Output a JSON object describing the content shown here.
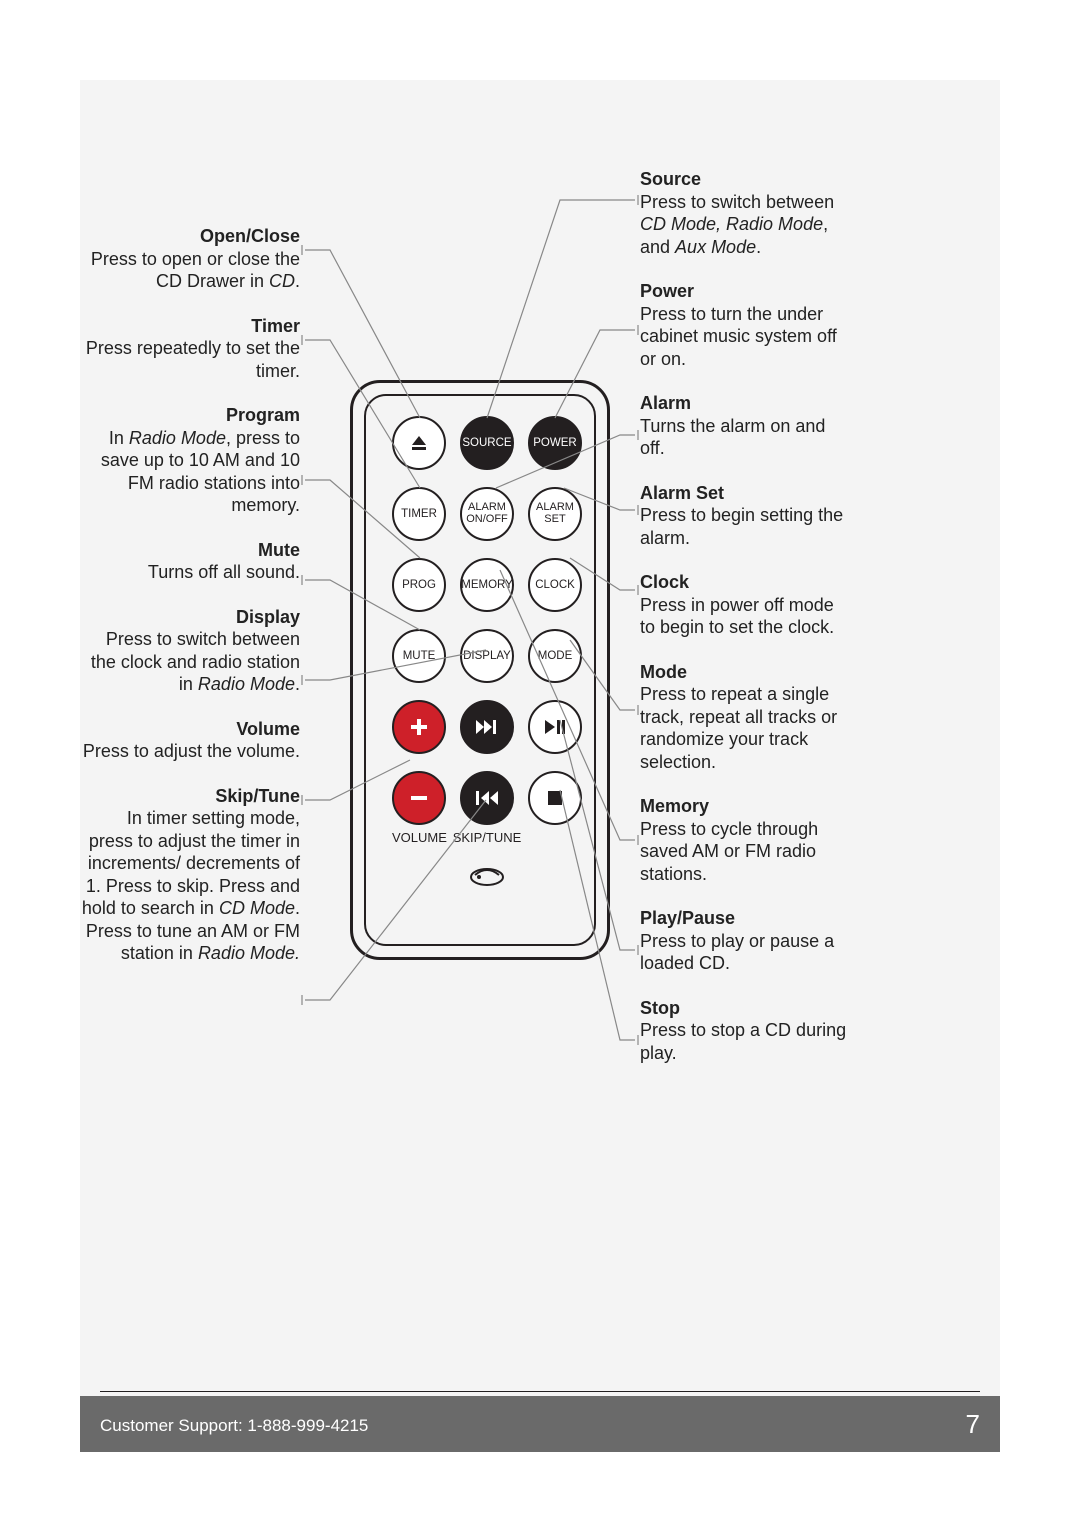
{
  "page": {
    "bg_color": "#f4f4f4",
    "text_color": "#222222",
    "line_color": "#888888",
    "footer_bg": "#6a6a6a",
    "footer_text_color": "#ffffff",
    "support_line": "Customer Support: 1-888-999-4215",
    "page_number": "7"
  },
  "left": [
    {
      "title": "Open/Close",
      "desc": "Press to open or close the CD Drawer in <i>CD</i>."
    },
    {
      "title": "Timer",
      "desc": "Press repeatedly to set the timer."
    },
    {
      "title": "Program",
      "desc": "In <i>Radio Mode</i>, press to save up to 10 AM and 10 FM radio stations into memory."
    },
    {
      "title": "Mute",
      "desc": "Turns off all sound."
    },
    {
      "title": "Display",
      "desc": "Press to switch between the clock and radio station in <i>Radio Mode</i>."
    },
    {
      "title": "Volume",
      "desc": "Press to adjust the volume."
    },
    {
      "title": "Skip/Tune",
      "desc": "In timer setting mode, press to adjust the timer in increments/ decrements of 1. Press to skip. Press and hold to search in <i>CD Mode</i>. Press to tune an AM or FM station in <i>Radio Mode.</i>"
    }
  ],
  "right": [
    {
      "title": "Source",
      "desc": "Press to switch between  <i>CD Mode, Radio Mode</i>, and <i>Aux Mode</i>."
    },
    {
      "title": "Power",
      "desc": "Press to turn the under cabinet music system off or on."
    },
    {
      "title": "Alarm",
      "desc": "Turns the alarm on and off."
    },
    {
      "title": "Alarm Set",
      "desc": "Press to begin setting the alarm."
    },
    {
      "title": "Clock",
      "desc": "Press in power off mode to begin to set the clock."
    },
    {
      "title": "Mode",
      "desc": "Press to repeat a single track, repeat all tracks or randomize your track selection."
    },
    {
      "title": "Memory",
      "desc": "Press to cycle through saved AM or FM radio stations."
    },
    {
      "title": "Play/Pause",
      "desc": "Press to play or pause a loaded CD."
    },
    {
      "title": "Stop",
      "desc": "Press to stop a CD during play."
    }
  ],
  "remote": {
    "outline_color": "#231f20",
    "btn_bg": "#ffffff",
    "btn_black": "#231f20",
    "btn_red": "#ce2029",
    "buttons": {
      "eject": {
        "label": "",
        "variant": "white",
        "icon": "eject"
      },
      "source": {
        "label": "SOURCE",
        "variant": "black"
      },
      "power": {
        "label": "POWER",
        "variant": "black"
      },
      "timer": {
        "label": "TIMER",
        "variant": "white"
      },
      "alarm": {
        "label": "ALARM\nON/OFF",
        "variant": "white"
      },
      "alarmset": {
        "label": "ALARM\nSET",
        "variant": "white"
      },
      "prog": {
        "label": "PROG",
        "variant": "white"
      },
      "memory": {
        "label": "MEMORY",
        "variant": "white"
      },
      "clock": {
        "label": "CLOCK",
        "variant": "white"
      },
      "mute": {
        "label": "MUTE",
        "variant": "white"
      },
      "display": {
        "label": "DISPLAY",
        "variant": "white"
      },
      "mode": {
        "label": "MODE",
        "variant": "white"
      },
      "vol_up": {
        "label": "",
        "variant": "red",
        "icon": "plus"
      },
      "skip_fwd": {
        "label": "",
        "variant": "black",
        "icon": "ffwd"
      },
      "play": {
        "label": "",
        "variant": "white",
        "icon": "playpause"
      },
      "vol_dn": {
        "label": "",
        "variant": "red",
        "icon": "minus"
      },
      "skip_bck": {
        "label": "",
        "variant": "black",
        "icon": "frew"
      },
      "stop": {
        "label": "",
        "variant": "white",
        "icon": "stop"
      }
    },
    "section_labels": {
      "volume": "VOLUME",
      "skiptune": "SKIP/TUNE"
    }
  }
}
